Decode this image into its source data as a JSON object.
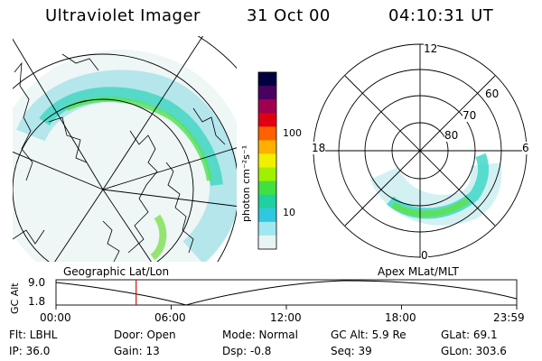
{
  "header": {
    "instrument": "Ultraviolet Imager",
    "date": "31 Oct 00",
    "time": "04:10:31 UT"
  },
  "left_panel": {
    "caption": "Geographic Lat/Lon"
  },
  "right_panel": {
    "caption": "Apex MLat/MLT",
    "mlt_labels": {
      "top": "12",
      "left": "18",
      "right": "6",
      "bottom": "0"
    },
    "lat_labels": [
      "60",
      "70",
      "80"
    ]
  },
  "colorbar": {
    "unit_label": "photon cm⁻²s⁻¹",
    "ticks": [
      "100",
      "10"
    ],
    "colors": [
      "#000040",
      "#4a0060",
      "#a00050",
      "#e00010",
      "#ff6000",
      "#ffb000",
      "#f0f000",
      "#a0f000",
      "#40e040",
      "#20d0a0",
      "#30c8e0",
      "#a0e8f0",
      "#e8f4f4"
    ]
  },
  "timeline": {
    "ylabel": "GC Alt",
    "y_ticks": [
      "9.0",
      "1.8"
    ],
    "x_ticks": [
      "00:00",
      "06:00",
      "12:00",
      "18:00",
      "23:59"
    ],
    "marker_time": "04:10",
    "marker_fraction": 0.174
  },
  "footer": {
    "flt": "Flt: LBHL",
    "door": "Door: Open",
    "mode": "Mode: Normal",
    "gc_alt": "GC Alt: 5.9 Re",
    "glat": "GLat:  69.1",
    "ip": "IP: 36.0",
    "gain": "Gain: 13",
    "dsp": "Dsp:   -0.8",
    "seq": "Seq: 39",
    "glon": "GLon: 303.6"
  }
}
